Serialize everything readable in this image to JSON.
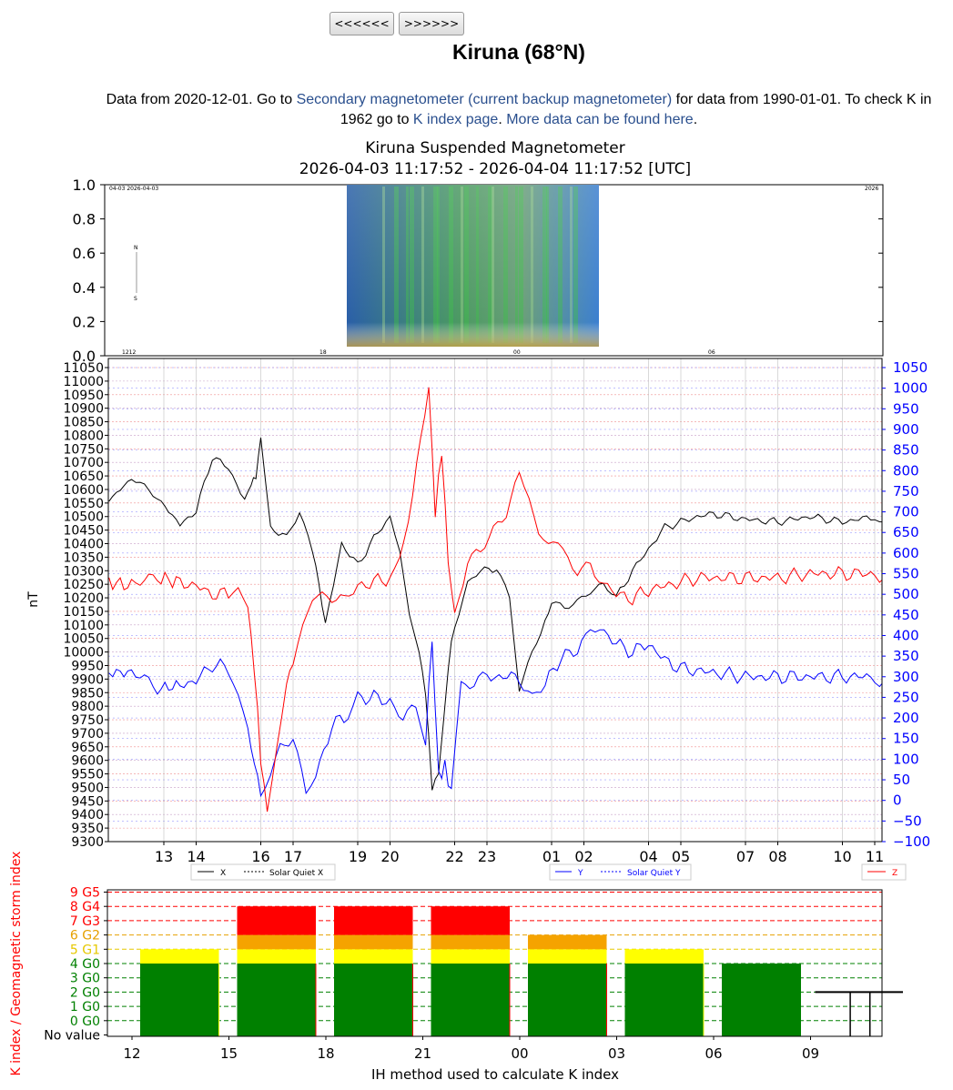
{
  "nav": {
    "prev_label": "<<<<<<",
    "next_label": ">>>>>>"
  },
  "page": {
    "title": "Kiruna (68°N)",
    "intro_1": "Data from 2020-12-01. Go to ",
    "link_secondary": "Secondary magnetometer (current backup magnetometer)",
    "intro_2": " for data from 1990-01-01. To check K in",
    "intro_3": "1962 go to ",
    "link_kindex": "K index page",
    "intro_4": ". ",
    "link_more": "More data can be found here",
    "intro_5": "."
  },
  "chart_data": [
    {
      "type": "image",
      "title": "Kiruna Suspended Magnetometer",
      "subtitle": "2026-04-03 11:17:52 - 2026-04-04 11:17:52 [UTC]",
      "y_ticks": [
        "1.0",
        "0.8",
        "0.6",
        "0.4",
        "0.2",
        "0.0"
      ],
      "keogram_labels": [
        "04-03 2026-04-03",
        "2026",
        "1212",
        "18",
        "00",
        "06",
        "N",
        "S"
      ]
    },
    {
      "type": "line",
      "ylabel": "nT",
      "left_axis": {
        "min": 9300,
        "max": 11050,
        "step": 50
      },
      "right_axis": {
        "min": -100,
        "max": 1050,
        "step": 50,
        "labels": [
          "1050",
          "1000",
          "950",
          "900",
          "850",
          "800",
          "750",
          "700",
          "650",
          "600",
          "550",
          "500",
          "450",
          "400",
          "350",
          "300",
          "250",
          "200",
          "150",
          "100",
          "50",
          "0",
          "−50",
          "−100"
        ],
        "color": "#0000ff"
      },
      "x_labels": [
        "13",
        "14",
        "16",
        "17",
        "19",
        "20",
        "22",
        "23",
        "01",
        "02",
        "04",
        "05",
        "07",
        "08",
        "10",
        "11"
      ],
      "legend": [
        {
          "name": "X",
          "quiet": "Solar Quiet X",
          "color": "#000000"
        },
        {
          "name": "Y",
          "quiet": "Solar Quiet Y",
          "color": "#0000ff"
        },
        {
          "name": "Z",
          "quiet": "",
          "color": "#ff0000"
        }
      ],
      "series": [
        {
          "name": "X",
          "axis": "left",
          "color": "#000000",
          "x": [
            11.3,
            12,
            12.8,
            13.5,
            14,
            14.5,
            15,
            15.5,
            15.7,
            15.85,
            16,
            16.3,
            16.8,
            17.2,
            17.6,
            17.8,
            18,
            18.5,
            19,
            19.5,
            20,
            20.3,
            20.6,
            20.9,
            21.1,
            21.3,
            21.5,
            21.8,
            22,
            22.4,
            22.8,
            23.3,
            23.7,
            24,
            24.4,
            24.8,
            25,
            25.4,
            25.8,
            26.2,
            26.6,
            27,
            27.5,
            28,
            28.5,
            29,
            29.5,
            30,
            31,
            32,
            33,
            34,
            35,
            35.3
          ],
          "y": [
            10560,
            10640,
            10570,
            10470,
            10520,
            10720,
            10680,
            10560,
            10620,
            10640,
            10790,
            10460,
            10420,
            10520,
            10380,
            10250,
            10100,
            10400,
            10320,
            10420,
            10500,
            10380,
            10140,
            10000,
            9850,
            9500,
            9550,
            9950,
            10100,
            10250,
            10300,
            10310,
            10200,
            9870,
            10000,
            10110,
            10180,
            10160,
            10190,
            10230,
            10250,
            10200,
            10300,
            10380,
            10460,
            10480,
            10500,
            10510,
            10490,
            10480,
            10500,
            10480,
            10500,
            10480
          ]
        },
        {
          "name": "Y",
          "axis": "right",
          "color": "#0000ff",
          "x": [
            11.3,
            12,
            12.8,
            13.5,
            14,
            14.5,
            15,
            15.3,
            15.6,
            15.8,
            16,
            16.3,
            16.6,
            17,
            17.4,
            17.7,
            18.2,
            18.7,
            19,
            19.5,
            20,
            20.4,
            20.8,
            21.1,
            21.3,
            21.5,
            21.7,
            21.9,
            22.2,
            22.6,
            23,
            23.5,
            24,
            24.4,
            24.8,
            25.3,
            25.8,
            26.2,
            26.5,
            27,
            27.5,
            28,
            28.5,
            29,
            30,
            31,
            32,
            33,
            34,
            35,
            35.3
          ],
          "y": [
            310,
            310,
            270,
            280,
            290,
            330,
            320,
            250,
            170,
            90,
            20,
            60,
            120,
            150,
            30,
            60,
            180,
            210,
            250,
            250,
            240,
            200,
            220,
            150,
            390,
            60,
            80,
            20,
            280,
            280,
            300,
            300,
            300,
            250,
            280,
            350,
            360,
            430,
            420,
            380,
            360,
            380,
            340,
            320,
            310,
            300,
            300,
            300,
            300,
            300,
            290
          ]
        },
        {
          "name": "Z",
          "axis": "right",
          "color": "#ff0000",
          "x": [
            11.3,
            12,
            12.8,
            13.5,
            14,
            14.5,
            15,
            15.3,
            15.6,
            15.8,
            16,
            16.2,
            16.5,
            16.8,
            17,
            17.3,
            17.6,
            17.9,
            18.2,
            18.6,
            19,
            19.5,
            20,
            20.3,
            20.7,
            21.2,
            21.4,
            21.6,
            21.8,
            22,
            22.4,
            22.8,
            23.2,
            23.6,
            24,
            24.3,
            24.6,
            24.9,
            25.2,
            25.5,
            25.8,
            26.2,
            26.6,
            27,
            27.5,
            28,
            28.5,
            29,
            29.5,
            30,
            31,
            32,
            33,
            34,
            35,
            35.3
          ],
          "y": [
            530,
            520,
            540,
            530,
            520,
            500,
            500,
            520,
            470,
            320,
            100,
            -30,
            150,
            280,
            340,
            420,
            480,
            500,
            490,
            480,
            520,
            530,
            540,
            580,
            750,
            1000,
            700,
            850,
            580,
            450,
            580,
            600,
            650,
            700,
            800,
            740,
            650,
            620,
            610,
            600,
            560,
            580,
            520,
            500,
            490,
            510,
            520,
            530,
            540,
            540,
            540,
            540,
            550,
            550,
            550,
            540
          ]
        }
      ]
    },
    {
      "type": "bar",
      "ylabel": "K index / Geomagnetic storm index",
      "xlabel": "IH method used to calculate K index",
      "y_ticks": [
        {
          "label": "9 G5",
          "color": "#ff0000"
        },
        {
          "label": "8 G4",
          "color": "#ff0000"
        },
        {
          "label": "7 G3",
          "color": "#ff0000"
        },
        {
          "label": "6 G2",
          "color": "#e6a000"
        },
        {
          "label": "5 G1",
          "color": "#e6c800"
        },
        {
          "label": "4 G0",
          "color": "#008000"
        },
        {
          "label": "3 G0",
          "color": "#008000"
        },
        {
          "label": "2 G0",
          "color": "#008000"
        },
        {
          "label": "1 G0",
          "color": "#008000"
        },
        {
          "label": "0 G0",
          "color": "#008000"
        },
        {
          "label": "No value",
          "color": "#000000"
        }
      ],
      "x_labels": [
        "12",
        "15",
        "18",
        "21",
        "00",
        "03",
        "06",
        "09"
      ],
      "categories": [
        "12-15",
        "15-18",
        "18-21",
        "21-00",
        "00-03",
        "03-06",
        "06-09",
        "09-12"
      ],
      "values": [
        5,
        8,
        8,
        8,
        6,
        5,
        4,
        null
      ]
    }
  ]
}
